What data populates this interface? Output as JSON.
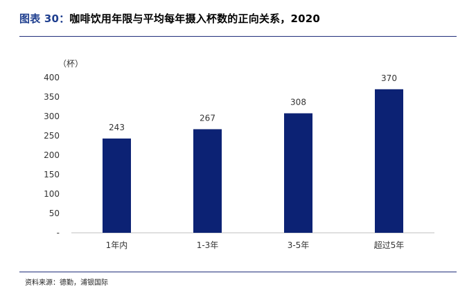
{
  "header": {
    "figure_label": "图表 30：",
    "title": "咖啡饮用年限与平均每年摄入杯数的正向关系，2020"
  },
  "footer": {
    "source": "资料来源：德勤，浦银国际"
  },
  "colors": {
    "bar": "#0c2274",
    "axis": "#bfbfbf",
    "rule": "#1f2d7a"
  },
  "chart_data": {
    "type": "bar",
    "unit_label": "（杯）",
    "categories": [
      "1年内",
      "1-3年",
      "3-5年",
      "超过5年"
    ],
    "values": [
      243,
      267,
      308,
      370
    ],
    "y_ticks": [
      "400",
      "350",
      "300",
      "250",
      "200",
      "150",
      "100",
      "50",
      "-"
    ],
    "ylim": [
      0,
      400
    ],
    "grid": false,
    "legend": "none"
  }
}
